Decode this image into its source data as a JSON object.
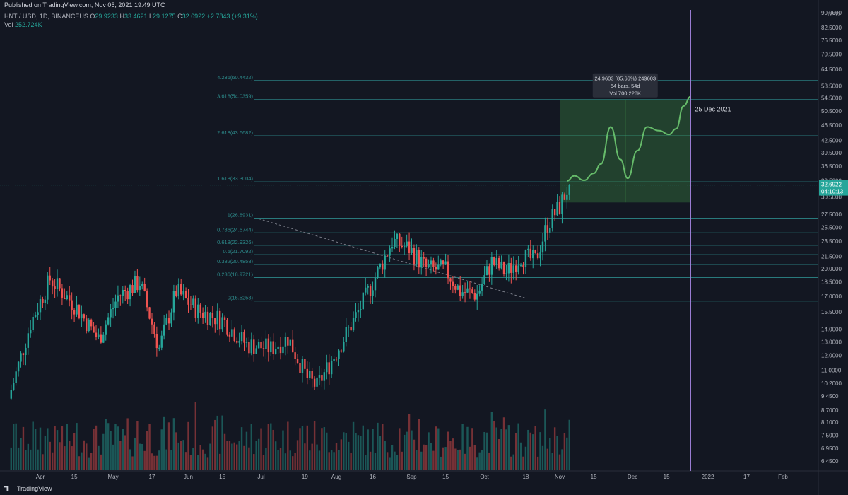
{
  "header": {
    "published": "Published on TradingView.com, Nov 05, 2021 19:49 UTC"
  },
  "legend": {
    "symbol": "HNT / USD, 1D, BINANCEUS",
    "open_label": "O",
    "open": "29.9233",
    "high_label": "H",
    "high": "33.4621",
    "low_label": "L",
    "low": "29.1275",
    "close_label": "C",
    "close": "32.6922",
    "change": "+2.7843 (+9.31%)",
    "vol_label": "Vol",
    "vol": "252.724K"
  },
  "footer": {
    "brand": "TradingView"
  },
  "colors": {
    "background": "#131722",
    "up": "#26a69a",
    "down": "#ef5350",
    "fib_line": "#2d8c8c",
    "projection_box": "#4caf50",
    "marker_line": "#9c7fd6"
  },
  "chart_data": {
    "type": "candlestick",
    "symbol": "HNT / USD",
    "interval": "1D",
    "exchange": "BINANCEUS",
    "y_axis": {
      "scale": "log",
      "unit_label": "USD",
      "ticks": [
        "90.0000",
        "82.5000",
        "76.5000",
        "70.5000",
        "64.5000",
        "58.5000",
        "54.5000",
        "50.5000",
        "46.5000",
        "42.5000",
        "39.5000",
        "36.5000",
        "33.5000",
        "30.5000",
        "27.5000",
        "25.5000",
        "23.5000",
        "21.5000",
        "20.0000",
        "18.5000",
        "17.0000",
        "15.5000",
        "14.0000",
        "13.0000",
        "12.0000",
        "11.0000",
        "10.2000",
        "9.4500",
        "8.7000",
        "8.1000",
        "7.5000",
        "6.9500",
        "6.4500"
      ]
    },
    "x_axis": {
      "ticks": [
        {
          "label": "Apr",
          "date": "2021-04-01"
        },
        {
          "label": "15",
          "date": "2021-04-15"
        },
        {
          "label": "May",
          "date": "2021-05-01"
        },
        {
          "label": "17",
          "date": "2021-05-17"
        },
        {
          "label": "Jun",
          "date": "2021-06-01"
        },
        {
          "label": "15",
          "date": "2021-06-15"
        },
        {
          "label": "Jul",
          "date": "2021-07-01"
        },
        {
          "label": "19",
          "date": "2021-07-19"
        },
        {
          "label": "Aug",
          "date": "2021-08-01"
        },
        {
          "label": "16",
          "date": "2021-08-16"
        },
        {
          "label": "Sep",
          "date": "2021-09-01"
        },
        {
          "label": "15",
          "date": "2021-09-15"
        },
        {
          "label": "Oct",
          "date": "2021-10-01"
        },
        {
          "label": "18",
          "date": "2021-10-18"
        },
        {
          "label": "Nov",
          "date": "2021-11-01"
        },
        {
          "label": "15",
          "date": "2021-11-15"
        },
        {
          "label": "Dec",
          "date": "2021-12-01"
        },
        {
          "label": "15",
          "date": "2021-12-15"
        },
        {
          "label": "2022",
          "date": "2022-01-01"
        },
        {
          "label": "17",
          "date": "2022-01-17"
        },
        {
          "label": "Feb",
          "date": "2022-02-01"
        }
      ]
    },
    "key_closes": [
      {
        "date": "2021-03-20",
        "close": 9.8
      },
      {
        "date": "2021-03-28",
        "close": 14.5
      },
      {
        "date": "2021-04-05",
        "close": 18.8
      },
      {
        "date": "2021-04-15",
        "close": 16.2
      },
      {
        "date": "2021-04-25",
        "close": 13.2
      },
      {
        "date": "2021-05-03",
        "close": 17.0
      },
      {
        "date": "2021-05-12",
        "close": 18.5
      },
      {
        "date": "2021-05-20",
        "close": 12.5
      },
      {
        "date": "2021-05-27",
        "close": 17.5
      },
      {
        "date": "2021-06-05",
        "close": 15.6
      },
      {
        "date": "2021-06-15",
        "close": 14.8
      },
      {
        "date": "2021-06-25",
        "close": 12.8
      },
      {
        "date": "2021-07-05",
        "close": 12.5
      },
      {
        "date": "2021-07-12",
        "close": 13.3
      },
      {
        "date": "2021-07-20",
        "close": 10.5
      },
      {
        "date": "2021-07-24",
        "close": 10.0
      },
      {
        "date": "2021-08-02",
        "close": 12.6
      },
      {
        "date": "2021-08-10",
        "close": 15.5
      },
      {
        "date": "2021-08-17",
        "close": 19.0
      },
      {
        "date": "2021-08-24",
        "close": 23.5
      },
      {
        "date": "2021-08-31",
        "close": 22.5
      },
      {
        "date": "2021-09-07",
        "close": 20.0
      },
      {
        "date": "2021-09-15",
        "close": 19.8
      },
      {
        "date": "2021-09-21",
        "close": 17.5
      },
      {
        "date": "2021-09-28",
        "close": 17.2
      },
      {
        "date": "2021-10-04",
        "close": 20.8
      },
      {
        "date": "2021-10-10",
        "close": 19.5
      },
      {
        "date": "2021-10-16",
        "close": 21.5
      },
      {
        "date": "2021-10-22",
        "close": 21.0
      },
      {
        "date": "2021-10-27",
        "close": 26.0
      },
      {
        "date": "2021-11-01",
        "close": 28.8
      },
      {
        "date": "2021-11-05",
        "close": 32.6922
      }
    ],
    "last_price": "32.6922",
    "countdown": "04:10:13",
    "fibonacci": [
      {
        "ratio": "4.236",
        "price": "60.4432"
      },
      {
        "ratio": "3.618",
        "price": "54.0359"
      },
      {
        "ratio": "2.618",
        "price": "43.6682"
      },
      {
        "ratio": "1.618",
        "price": "33.3004"
      },
      {
        "ratio": "1",
        "price": "26.8931"
      },
      {
        "ratio": "0.786",
        "price": "24.6744"
      },
      {
        "ratio": "0.618",
        "price": "22.9326"
      },
      {
        "ratio": "0.5",
        "price": "21.7092"
      },
      {
        "ratio": "0.382",
        "price": "20.4858"
      },
      {
        "ratio": "0.236",
        "price": "18.9721"
      },
      {
        "ratio": "0",
        "price": "16.5253"
      }
    ],
    "projection_box": {
      "start": "2021-11-01",
      "end": "2021-12-25",
      "low": 29.5,
      "high": 54.0359,
      "label_lines": [
        "24.9603 (85.66%) 249603",
        "54 bars, 54d",
        "Vol 700.228K"
      ]
    },
    "projection_path": [
      {
        "date": "2021-11-04",
        "price": 33.5
      },
      {
        "date": "2021-11-07",
        "price": 34.5
      },
      {
        "date": "2021-11-11",
        "price": 33.6
      },
      {
        "date": "2021-11-15",
        "price": 35.0
      },
      {
        "date": "2021-11-18",
        "price": 37.0
      },
      {
        "date": "2021-11-22",
        "price": 46.0
      },
      {
        "date": "2021-11-26",
        "price": 38.0
      },
      {
        "date": "2021-11-29",
        "price": 34.0
      },
      {
        "date": "2021-12-03",
        "price": 40.0
      },
      {
        "date": "2021-12-07",
        "price": 46.0
      },
      {
        "date": "2021-12-12",
        "price": 45.0
      },
      {
        "date": "2021-12-16",
        "price": 44.0
      },
      {
        "date": "2021-12-19",
        "price": 45.5
      },
      {
        "date": "2021-12-22",
        "price": 52.0
      },
      {
        "date": "2021-12-25",
        "price": 55.0
      }
    ],
    "vertical_marker": {
      "date": "2021-12-25",
      "label": "25 Dec 2021"
    },
    "trendline": {
      "from": {
        "date": "2021-06-30",
        "price": 26.8
      },
      "to": {
        "date": "2021-10-18",
        "price": 16.8
      }
    },
    "grid": false
  }
}
